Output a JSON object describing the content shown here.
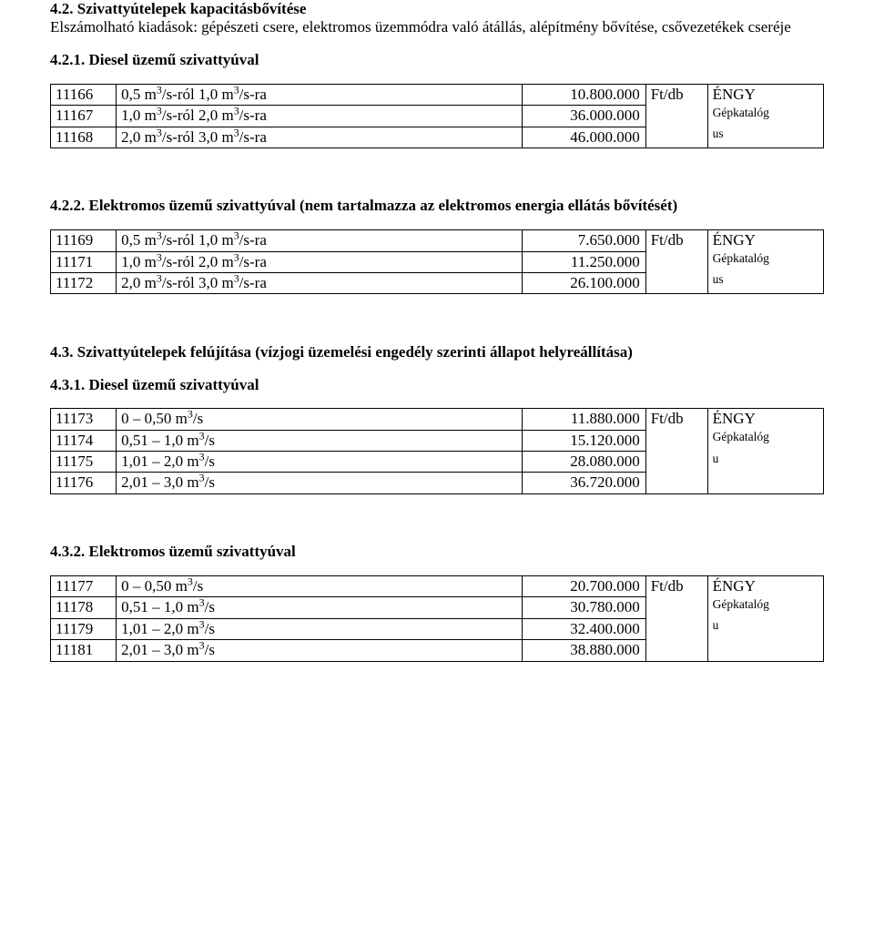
{
  "s42": {
    "title": "4.2. Szivattyútelepek kapacitásbővítése",
    "para": "Elszámolható kiadások: gépészeti csere, elektromos üzemmódra való átállás, alépítmény bővítése, csővezetékek cseréje"
  },
  "s421": {
    "title": "4.2.1. Diesel üzemű szivattyúval",
    "rows": [
      {
        "code": "11166",
        "desc_prefix": "0,5 m",
        "desc_mid": "/s-ról 1,0 m",
        "desc_suffix": "/s-ra",
        "val": "10.800.000",
        "unit": "Ft/db",
        "src": "ÉNGY"
      },
      {
        "code": "11167",
        "desc_prefix": "1,0 m",
        "desc_mid": "/s-ról 2,0 m",
        "desc_suffix": "/s-ra",
        "val": "36.000.000",
        "unit": "",
        "src": "Gépkatalóg"
      },
      {
        "code": "11168",
        "desc_prefix": "2,0 m",
        "desc_mid": "/s-ról 3,0 m",
        "desc_suffix": "/s-ra",
        "val": "46.000.000",
        "unit": "",
        "src": "us"
      }
    ]
  },
  "s422": {
    "title": "4.2.2. Elektromos üzemű szivattyúval (nem tartalmazza az elektromos energia ellátás bővítését)",
    "rows": [
      {
        "code": "11169",
        "desc_prefix": "0,5 m",
        "desc_mid": "/s-ról 1,0 m",
        "desc_suffix": "/s-ra",
        "val": "7.650.000",
        "unit": "Ft/db",
        "src": "ÉNGY"
      },
      {
        "code": "11171",
        "desc_prefix": "1,0 m",
        "desc_mid": "/s-ról 2,0 m",
        "desc_suffix": "/s-ra",
        "val": "11.250.000",
        "unit": "",
        "src": "Gépkatalóg"
      },
      {
        "code": "11172",
        "desc_prefix": "2,0 m",
        "desc_mid": "/s-ról 3,0 m",
        "desc_suffix": "/s-ra",
        "val": "26.100.000",
        "unit": "",
        "src": "us"
      }
    ]
  },
  "s43": {
    "title": "4.3.  Szivattyútelepek  felújítása  (vízjogi  üzemelési  engedély  szerinti  állapot helyreállítása)"
  },
  "s431": {
    "title": "4.3.1. Diesel üzemű szivattyúval",
    "rows": [
      {
        "code": "11173",
        "desc_prefix": "0 – 0,50 m",
        "desc_suffix": "/s",
        "val": "11.880.000",
        "unit": "Ft/db",
        "src": "ÉNGY"
      },
      {
        "code": "11174",
        "desc_prefix": "0,51 – 1,0 m",
        "desc_suffix": "/s",
        "val": "15.120.000",
        "unit": "",
        "src": "Gépkatalóg"
      },
      {
        "code": "11175",
        "desc_prefix": "1,01 – 2,0 m",
        "desc_suffix": "/s",
        "val": "28.080.000",
        "unit": "",
        "src": "u"
      },
      {
        "code": "11176",
        "desc_prefix": "2,01 – 3,0 m",
        "desc_suffix": "/s",
        "val": "36.720.000",
        "unit": "",
        "src": ""
      }
    ]
  },
  "s432": {
    "title": "4.3.2. Elektromos üzemű szivattyúval",
    "rows": [
      {
        "code": "11177",
        "desc_prefix": "0 – 0,50 m",
        "desc_suffix": "/s",
        "val": "20.700.000",
        "unit": "Ft/db",
        "src": "ÉNGY"
      },
      {
        "code": "11178",
        "desc_prefix": "0,51 – 1,0 m",
        "desc_suffix": "/s",
        "val": "30.780.000",
        "unit": "",
        "src": "Gépkatalóg"
      },
      {
        "code": "11179",
        "desc_prefix": "1,01 – 2,0 m",
        "desc_suffix": "/s",
        "val": "32.400.000",
        "unit": "",
        "src": "u"
      },
      {
        "code": "11181",
        "desc_prefix": "2,01 – 3,0 m",
        "desc_suffix": "/s",
        "val": "38.880.000",
        "unit": "",
        "src": ""
      }
    ]
  },
  "sup3": "3"
}
